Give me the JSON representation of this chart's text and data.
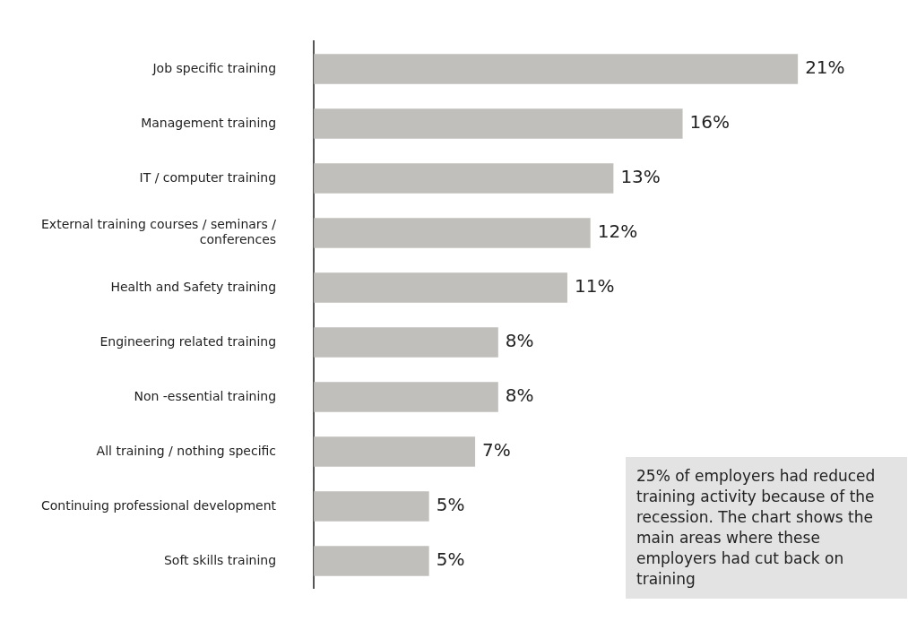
{
  "chart_data": {
    "type": "bar",
    "orientation": "horizontal",
    "categories": [
      "Job specific training",
      "Management training",
      "IT / computer training",
      "External training courses / seminars / conferences",
      "Health and Safety training",
      "Engineering related training",
      "Non -essential training",
      "All training / nothing specific",
      "Continuing professional development",
      "Soft skills training"
    ],
    "values": [
      21,
      16,
      13,
      12,
      11,
      8,
      8,
      7,
      5,
      5
    ],
    "color": "#c0bfbb",
    "value_labels": [
      "21%",
      "16%",
      "13%",
      "12%",
      "11%",
      "8%",
      "8%",
      "7%",
      "5%",
      "5%"
    ],
    "annotations": [
      "25% of employers had reduced training activity because of the recession. The chart shows the main areas where these employers had cut back on training"
    ],
    "grid": false,
    "legend": false
  }
}
